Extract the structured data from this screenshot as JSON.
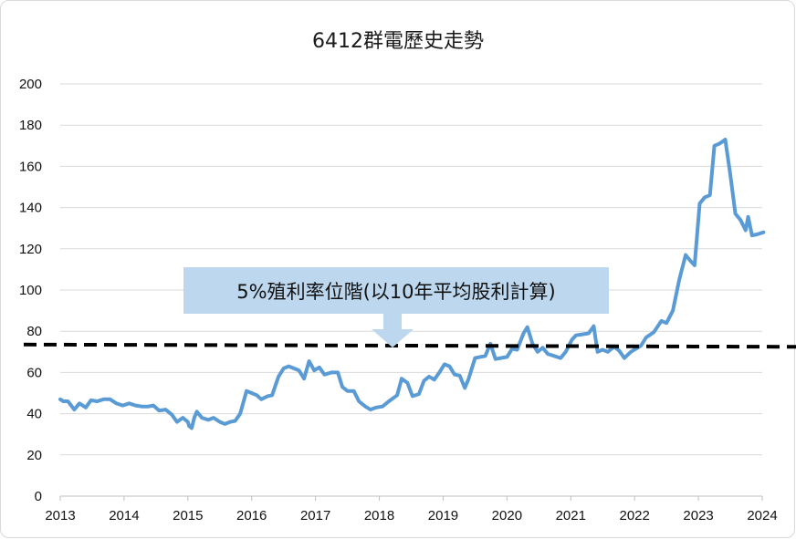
{
  "chart_data": {
    "type": "line",
    "title": "6412群電歷史走勢",
    "xlabel": "",
    "ylabel": "",
    "xlim": [
      2013,
      2024
    ],
    "ylim": [
      0,
      200
    ],
    "x_ticks": [
      "2013",
      "2014",
      "2015",
      "2016",
      "2017",
      "2018",
      "2019",
      "2020",
      "2021",
      "2022",
      "2023",
      "2024"
    ],
    "y_ticks": [
      "0",
      "20",
      "40",
      "60",
      "80",
      "100",
      "120",
      "140",
      "160",
      "180",
      "200"
    ],
    "grid": true,
    "legend": "none",
    "series": [
      {
        "color": "#5b9bd5",
        "points": [
          [
            2013.0,
            47
          ],
          [
            2013.05,
            46
          ],
          [
            2013.12,
            46
          ],
          [
            2013.22,
            42
          ],
          [
            2013.3,
            45
          ],
          [
            2013.4,
            43
          ],
          [
            2013.48,
            46.5
          ],
          [
            2013.58,
            46
          ],
          [
            2013.68,
            47
          ],
          [
            2013.78,
            47
          ],
          [
            2013.88,
            45
          ],
          [
            2013.98,
            44
          ],
          [
            2014.08,
            45
          ],
          [
            2014.18,
            44
          ],
          [
            2014.28,
            43.5
          ],
          [
            2014.38,
            43.5
          ],
          [
            2014.46,
            44
          ],
          [
            2014.55,
            41.5
          ],
          [
            2014.65,
            42
          ],
          [
            2014.75,
            39.5
          ],
          [
            2014.83,
            36
          ],
          [
            2014.92,
            38
          ],
          [
            2015.0,
            36
          ],
          [
            2015.02,
            34
          ],
          [
            2015.06,
            33
          ],
          [
            2015.1,
            38
          ],
          [
            2015.14,
            41
          ],
          [
            2015.22,
            38
          ],
          [
            2015.32,
            37
          ],
          [
            2015.4,
            38
          ],
          [
            2015.5,
            36
          ],
          [
            2015.58,
            35
          ],
          [
            2015.66,
            36
          ],
          [
            2015.74,
            36.5
          ],
          [
            2015.82,
            40
          ],
          [
            2015.92,
            51
          ],
          [
            2016.0,
            50
          ],
          [
            2016.08,
            49
          ],
          [
            2016.15,
            47
          ],
          [
            2016.25,
            48.5
          ],
          [
            2016.32,
            49
          ],
          [
            2016.42,
            58
          ],
          [
            2016.5,
            62
          ],
          [
            2016.58,
            63
          ],
          [
            2016.66,
            62
          ],
          [
            2016.74,
            61
          ],
          [
            2016.82,
            57
          ],
          [
            2016.9,
            65.5
          ],
          [
            2016.98,
            61
          ],
          [
            2017.06,
            62.5
          ],
          [
            2017.14,
            59
          ],
          [
            2017.25,
            60
          ],
          [
            2017.35,
            60
          ],
          [
            2017.42,
            53
          ],
          [
            2017.5,
            51
          ],
          [
            2017.6,
            51
          ],
          [
            2017.68,
            46
          ],
          [
            2017.78,
            43.5
          ],
          [
            2017.86,
            42
          ],
          [
            2017.95,
            43
          ],
          [
            2018.05,
            43.5
          ],
          [
            2018.15,
            46
          ],
          [
            2018.28,
            49
          ],
          [
            2018.35,
            57
          ],
          [
            2018.44,
            55
          ],
          [
            2018.52,
            48.5
          ],
          [
            2018.62,
            49.5
          ],
          [
            2018.7,
            56
          ],
          [
            2018.78,
            58
          ],
          [
            2018.86,
            56.5
          ],
          [
            2018.94,
            60
          ],
          [
            2019.02,
            64
          ],
          [
            2019.1,
            63
          ],
          [
            2019.18,
            59
          ],
          [
            2019.26,
            58.5
          ],
          [
            2019.34,
            52.5
          ],
          [
            2019.4,
            57
          ],
          [
            2019.5,
            67
          ],
          [
            2019.58,
            67.5
          ],
          [
            2019.66,
            68
          ],
          [
            2019.74,
            74
          ],
          [
            2019.82,
            66.5
          ],
          [
            2019.9,
            67
          ],
          [
            2020.0,
            67.5
          ],
          [
            2020.08,
            71.5
          ],
          [
            2020.16,
            71
          ],
          [
            2020.26,
            79
          ],
          [
            2020.32,
            82
          ],
          [
            2020.4,
            74
          ],
          [
            2020.48,
            70
          ],
          [
            2020.56,
            72
          ],
          [
            2020.64,
            69
          ],
          [
            2020.74,
            68
          ],
          [
            2020.84,
            67
          ],
          [
            2020.92,
            70
          ],
          [
            2021.02,
            76
          ],
          [
            2021.08,
            78
          ],
          [
            2021.18,
            78.5
          ],
          [
            2021.28,
            79
          ],
          [
            2021.36,
            82.5
          ],
          [
            2021.42,
            70
          ],
          [
            2021.5,
            71
          ],
          [
            2021.58,
            70
          ],
          [
            2021.68,
            72.5
          ],
          [
            2021.76,
            70.5
          ],
          [
            2021.84,
            67
          ],
          [
            2021.94,
            70
          ],
          [
            2022.02,
            71.5
          ],
          [
            2022.1,
            73
          ],
          [
            2022.18,
            77
          ],
          [
            2022.3,
            79.5
          ],
          [
            2022.42,
            85
          ],
          [
            2022.5,
            84
          ],
          [
            2022.6,
            90
          ],
          [
            2022.7,
            105
          ],
          [
            2022.8,
            117
          ],
          [
            2022.88,
            114
          ],
          [
            2022.94,
            112
          ],
          [
            2023.02,
            142
          ],
          [
            2023.1,
            145
          ],
          [
            2023.18,
            146
          ],
          [
            2023.25,
            170
          ],
          [
            2023.33,
            171
          ],
          [
            2023.42,
            173
          ],
          [
            2023.5,
            156
          ],
          [
            2023.58,
            137
          ],
          [
            2023.66,
            134
          ],
          [
            2023.74,
            129
          ],
          [
            2023.78,
            135.5
          ],
          [
            2023.84,
            126.5
          ],
          [
            2023.92,
            127
          ],
          [
            2024.02,
            128
          ]
        ]
      }
    ],
    "reference_line": {
      "y_start": 73.5,
      "y_end": 72.5,
      "style": "dashed",
      "color": "#000000"
    },
    "annotation": {
      "text": "5%殖利率位階(以10年平均股利計算)",
      "box_color": "#bdd7ee",
      "arrow_color": "#bdd7ee"
    }
  }
}
